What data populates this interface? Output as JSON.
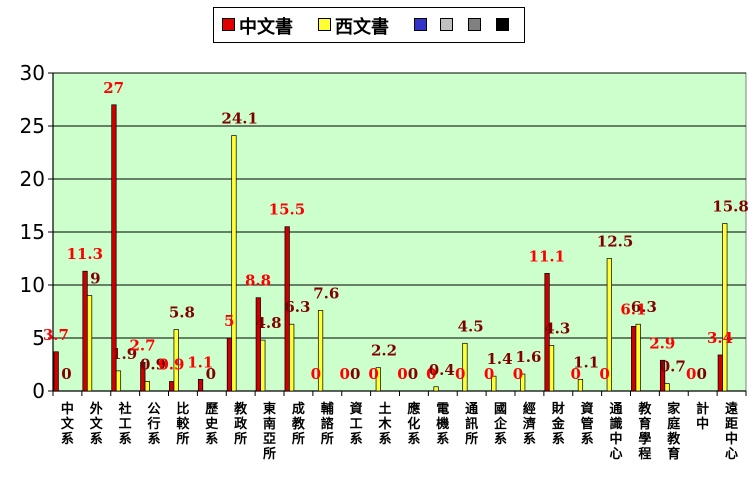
{
  "chart_data": {
    "type": "bar",
    "ylim": [
      0,
      30
    ],
    "yticks": [
      0,
      5,
      10,
      15,
      20,
      25,
      30
    ],
    "grid": true,
    "legend_position": "top",
    "legend": [
      {
        "name": "中文書",
        "color": "#e00000"
      },
      {
        "name": "西文書",
        "color": "#ffff33"
      },
      {
        "name": "",
        "color": "#3333cc"
      },
      {
        "name": "",
        "color": "#c0c0c0"
      },
      {
        "name": "",
        "color": "#808080"
      },
      {
        "name": "",
        "color": "#000000"
      }
    ],
    "categories": [
      "中文系",
      "外文系",
      "社工系",
      "公行系",
      "比較所",
      "歷史系",
      "教政所",
      "東南亞所",
      "成教所",
      "輔諮所",
      "資工系",
      "土木系",
      "應化系",
      "電機系",
      "通訊所",
      "國企系",
      "經濟系",
      "財金系",
      "資管系",
      "通識中心",
      "教育學程",
      "家庭教育",
      "計中",
      "遠距中心"
    ],
    "series": [
      {
        "name": "中文書",
        "color": "#cc0000",
        "label_color": "#ff0000",
        "values": [
          3.7,
          11.3,
          27,
          2.7,
          0.9,
          1.1,
          5,
          8.8,
          15.5,
          0,
          0,
          0,
          0,
          0,
          0,
          0,
          0,
          11.1,
          0,
          0,
          6.1,
          2.9,
          0,
          3.4
        ]
      },
      {
        "name": "西文書",
        "color": "#ffff33",
        "label_color": "#800000",
        "values": [
          0,
          9,
          1.9,
          0.9,
          5.8,
          0,
          24.1,
          4.8,
          6.3,
          7.6,
          0,
          2.2,
          0,
          0.4,
          4.5,
          1.4,
          1.6,
          4.3,
          1.1,
          12.5,
          6.3,
          0.7,
          0,
          15.8
        ]
      }
    ],
    "value_labels": {
      "中文書": [
        "3.7",
        "11.3",
        "27",
        "2.7",
        "0.9",
        "1.1",
        "5",
        "8.8",
        "15.5",
        "0",
        "0",
        "0",
        "0",
        "0",
        "0",
        "0",
        "0",
        "11.1",
        "0",
        "0",
        "6.1",
        "2.9",
        "0",
        "3.4"
      ],
      "西文書": [
        "0",
        "9",
        "1.9",
        "0.9",
        "5.8",
        "0",
        "24.1",
        "4.8",
        "6.3",
        "7.6",
        "0",
        "2.2",
        "0",
        "0.4",
        "4.5",
        "1.4",
        "1.6",
        "4.3",
        "1.1",
        "12.5",
        "6.3",
        "0.7",
        "0",
        "15.8"
      ]
    },
    "colors": {
      "plot_bg": "#ccffcc",
      "grid": "#000000"
    }
  }
}
